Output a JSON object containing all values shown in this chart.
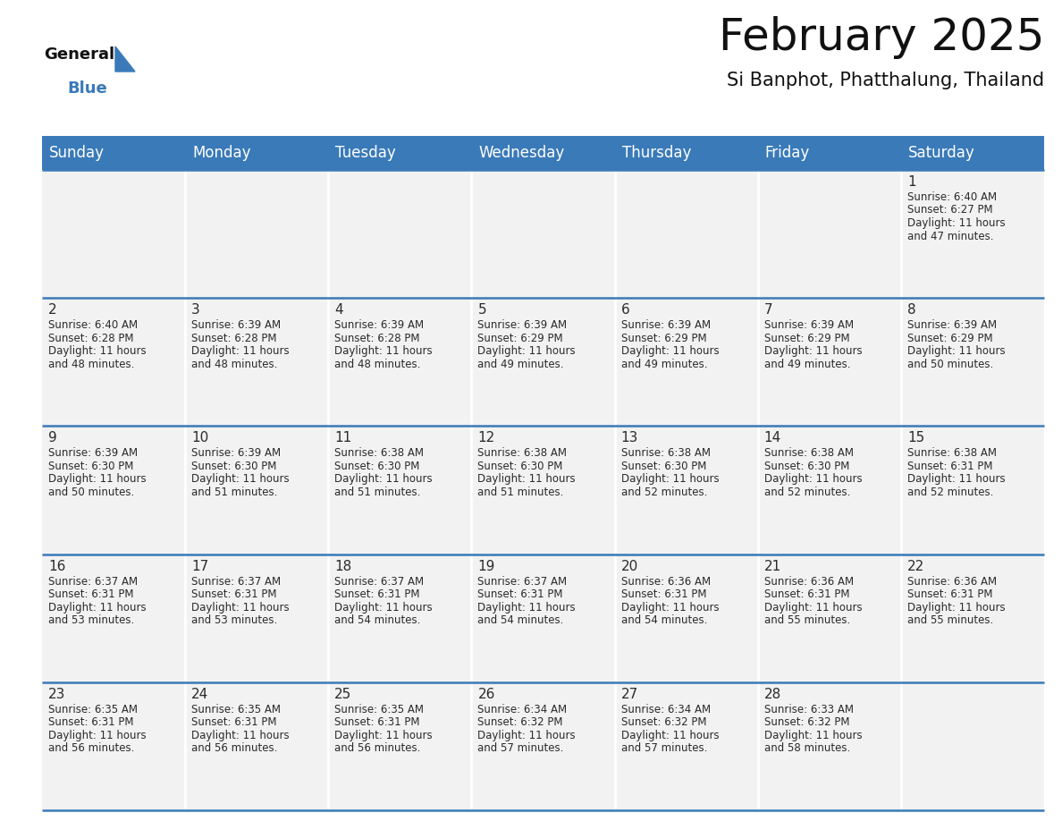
{
  "title": "February 2025",
  "subtitle": "Si Banphot, Phatthalung, Thailand",
  "header_color": "#3a7ab8",
  "header_text_color": "#ffffff",
  "cell_bg_color": "#f0f0f0",
  "border_color": "#3a7ab8",
  "day_headers": [
    "Sunday",
    "Monday",
    "Tuesday",
    "Wednesday",
    "Thursday",
    "Friday",
    "Saturday"
  ],
  "days": [
    {
      "day": 1,
      "col": 6,
      "row": 0,
      "sunrise": "6:40 AM",
      "sunset": "6:27 PM",
      "daylight_line1": "Daylight: 11 hours",
      "daylight_line2": "and 47 minutes."
    },
    {
      "day": 2,
      "col": 0,
      "row": 1,
      "sunrise": "6:40 AM",
      "sunset": "6:28 PM",
      "daylight_line1": "Daylight: 11 hours",
      "daylight_line2": "and 48 minutes."
    },
    {
      "day": 3,
      "col": 1,
      "row": 1,
      "sunrise": "6:39 AM",
      "sunset": "6:28 PM",
      "daylight_line1": "Daylight: 11 hours",
      "daylight_line2": "and 48 minutes."
    },
    {
      "day": 4,
      "col": 2,
      "row": 1,
      "sunrise": "6:39 AM",
      "sunset": "6:28 PM",
      "daylight_line1": "Daylight: 11 hours",
      "daylight_line2": "and 48 minutes."
    },
    {
      "day": 5,
      "col": 3,
      "row": 1,
      "sunrise": "6:39 AM",
      "sunset": "6:29 PM",
      "daylight_line1": "Daylight: 11 hours",
      "daylight_line2": "and 49 minutes."
    },
    {
      "day": 6,
      "col": 4,
      "row": 1,
      "sunrise": "6:39 AM",
      "sunset": "6:29 PM",
      "daylight_line1": "Daylight: 11 hours",
      "daylight_line2": "and 49 minutes."
    },
    {
      "day": 7,
      "col": 5,
      "row": 1,
      "sunrise": "6:39 AM",
      "sunset": "6:29 PM",
      "daylight_line1": "Daylight: 11 hours",
      "daylight_line2": "and 49 minutes."
    },
    {
      "day": 8,
      "col": 6,
      "row": 1,
      "sunrise": "6:39 AM",
      "sunset": "6:29 PM",
      "daylight_line1": "Daylight: 11 hours",
      "daylight_line2": "and 50 minutes."
    },
    {
      "day": 9,
      "col": 0,
      "row": 2,
      "sunrise": "6:39 AM",
      "sunset": "6:30 PM",
      "daylight_line1": "Daylight: 11 hours",
      "daylight_line2": "and 50 minutes."
    },
    {
      "day": 10,
      "col": 1,
      "row": 2,
      "sunrise": "6:39 AM",
      "sunset": "6:30 PM",
      "daylight_line1": "Daylight: 11 hours",
      "daylight_line2": "and 51 minutes."
    },
    {
      "day": 11,
      "col": 2,
      "row": 2,
      "sunrise": "6:38 AM",
      "sunset": "6:30 PM",
      "daylight_line1": "Daylight: 11 hours",
      "daylight_line2": "and 51 minutes."
    },
    {
      "day": 12,
      "col": 3,
      "row": 2,
      "sunrise": "6:38 AM",
      "sunset": "6:30 PM",
      "daylight_line1": "Daylight: 11 hours",
      "daylight_line2": "and 51 minutes."
    },
    {
      "day": 13,
      "col": 4,
      "row": 2,
      "sunrise": "6:38 AM",
      "sunset": "6:30 PM",
      "daylight_line1": "Daylight: 11 hours",
      "daylight_line2": "and 52 minutes."
    },
    {
      "day": 14,
      "col": 5,
      "row": 2,
      "sunrise": "6:38 AM",
      "sunset": "6:30 PM",
      "daylight_line1": "Daylight: 11 hours",
      "daylight_line2": "and 52 minutes."
    },
    {
      "day": 15,
      "col": 6,
      "row": 2,
      "sunrise": "6:38 AM",
      "sunset": "6:31 PM",
      "daylight_line1": "Daylight: 11 hours",
      "daylight_line2": "and 52 minutes."
    },
    {
      "day": 16,
      "col": 0,
      "row": 3,
      "sunrise": "6:37 AM",
      "sunset": "6:31 PM",
      "daylight_line1": "Daylight: 11 hours",
      "daylight_line2": "and 53 minutes."
    },
    {
      "day": 17,
      "col": 1,
      "row": 3,
      "sunrise": "6:37 AM",
      "sunset": "6:31 PM",
      "daylight_line1": "Daylight: 11 hours",
      "daylight_line2": "and 53 minutes."
    },
    {
      "day": 18,
      "col": 2,
      "row": 3,
      "sunrise": "6:37 AM",
      "sunset": "6:31 PM",
      "daylight_line1": "Daylight: 11 hours",
      "daylight_line2": "and 54 minutes."
    },
    {
      "day": 19,
      "col": 3,
      "row": 3,
      "sunrise": "6:37 AM",
      "sunset": "6:31 PM",
      "daylight_line1": "Daylight: 11 hours",
      "daylight_line2": "and 54 minutes."
    },
    {
      "day": 20,
      "col": 4,
      "row": 3,
      "sunrise": "6:36 AM",
      "sunset": "6:31 PM",
      "daylight_line1": "Daylight: 11 hours",
      "daylight_line2": "and 54 minutes."
    },
    {
      "day": 21,
      "col": 5,
      "row": 3,
      "sunrise": "6:36 AM",
      "sunset": "6:31 PM",
      "daylight_line1": "Daylight: 11 hours",
      "daylight_line2": "and 55 minutes."
    },
    {
      "day": 22,
      "col": 6,
      "row": 3,
      "sunrise": "6:36 AM",
      "sunset": "6:31 PM",
      "daylight_line1": "Daylight: 11 hours",
      "daylight_line2": "and 55 minutes."
    },
    {
      "day": 23,
      "col": 0,
      "row": 4,
      "sunrise": "6:35 AM",
      "sunset": "6:31 PM",
      "daylight_line1": "Daylight: 11 hours",
      "daylight_line2": "and 56 minutes."
    },
    {
      "day": 24,
      "col": 1,
      "row": 4,
      "sunrise": "6:35 AM",
      "sunset": "6:31 PM",
      "daylight_line1": "Daylight: 11 hours",
      "daylight_line2": "and 56 minutes."
    },
    {
      "day": 25,
      "col": 2,
      "row": 4,
      "sunrise": "6:35 AM",
      "sunset": "6:31 PM",
      "daylight_line1": "Daylight: 11 hours",
      "daylight_line2": "and 56 minutes."
    },
    {
      "day": 26,
      "col": 3,
      "row": 4,
      "sunrise": "6:34 AM",
      "sunset": "6:32 PM",
      "daylight_line1": "Daylight: 11 hours",
      "daylight_line2": "and 57 minutes."
    },
    {
      "day": 27,
      "col": 4,
      "row": 4,
      "sunrise": "6:34 AM",
      "sunset": "6:32 PM",
      "daylight_line1": "Daylight: 11 hours",
      "daylight_line2": "and 57 minutes."
    },
    {
      "day": 28,
      "col": 5,
      "row": 4,
      "sunrise": "6:33 AM",
      "sunset": "6:32 PM",
      "daylight_line1": "Daylight: 11 hours",
      "daylight_line2": "and 58 minutes."
    }
  ],
  "num_rows": 5,
  "logo_text_general": "General",
  "logo_text_blue": "Blue",
  "title_fontsize": 36,
  "subtitle_fontsize": 15,
  "dow_fontsize": 12,
  "day_num_fontsize": 11,
  "text_fontsize": 8.5
}
